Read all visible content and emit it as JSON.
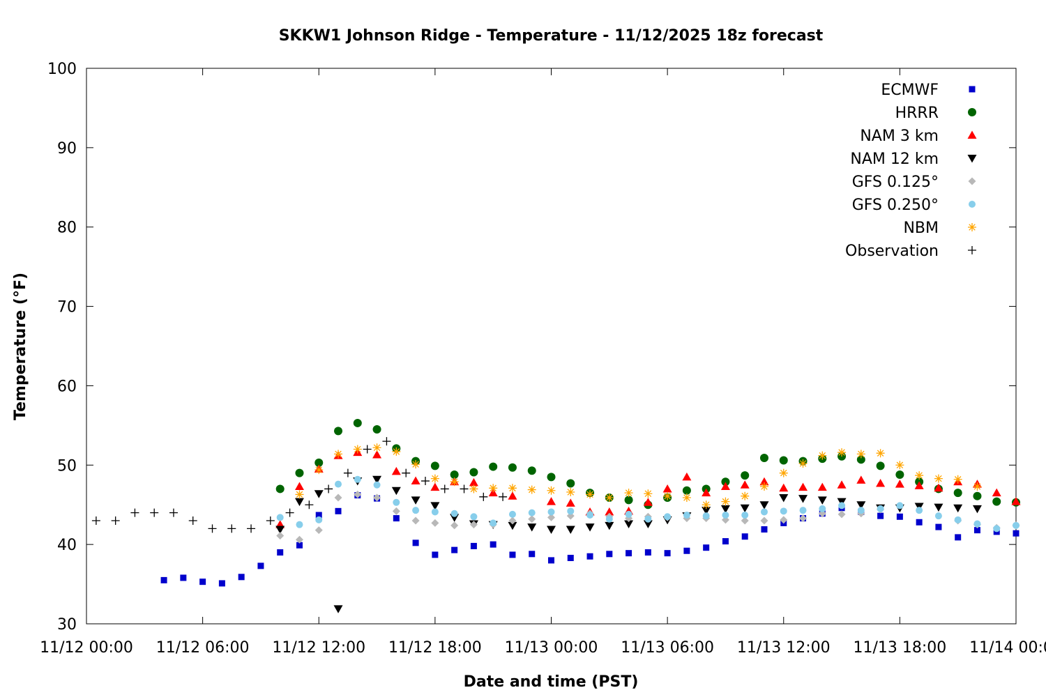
{
  "chart_data": {
    "type": "scatter",
    "title": "SKKW1 Johnson Ridge - Temperature - 11/12/2025 18z forecast",
    "xlabel": "Date and time (PST)",
    "ylabel": "Temperature (°F)",
    "xlim": [
      0,
      48
    ],
    "ylim": [
      30,
      100
    ],
    "xticks": [
      {
        "value": 0,
        "label": "11/12 00:00"
      },
      {
        "value": 6,
        "label": "11/12 06:00"
      },
      {
        "value": 12,
        "label": "11/12 12:00"
      },
      {
        "value": 18,
        "label": "11/12 18:00"
      },
      {
        "value": 24,
        "label": "11/13 00:00"
      },
      {
        "value": 30,
        "label": "11/13 06:00"
      },
      {
        "value": 36,
        "label": "11/13 12:00"
      },
      {
        "value": 42,
        "label": "11/13 18:00"
      },
      {
        "value": 48,
        "label": "11/14 00:00"
      }
    ],
    "yticks": [
      30,
      40,
      50,
      60,
      70,
      80,
      90,
      100
    ],
    "x_units": "hours since 11/12 00:00 PST",
    "legend_position": "top-right",
    "series": [
      {
        "name": "ECMWF",
        "marker": "square",
        "color": "#0000cc",
        "points": [
          [
            4,
            35.5
          ],
          [
            5,
            35.8
          ],
          [
            6,
            35.3
          ],
          [
            7,
            35.1
          ],
          [
            8,
            35.9
          ],
          [
            9,
            37.3
          ],
          [
            10,
            39.0
          ],
          [
            11,
            39.9
          ],
          [
            12,
            43.7
          ],
          [
            13,
            44.2
          ],
          [
            14,
            46.2
          ],
          [
            15,
            45.8
          ],
          [
            16,
            43.3
          ],
          [
            17,
            40.2
          ],
          [
            18,
            38.7
          ],
          [
            19,
            39.3
          ],
          [
            20,
            39.8
          ],
          [
            21,
            40.0
          ],
          [
            22,
            38.7
          ],
          [
            23,
            38.8
          ],
          [
            24,
            38.0
          ],
          [
            25,
            38.3
          ],
          [
            26,
            38.5
          ],
          [
            27,
            38.8
          ],
          [
            28,
            38.9
          ],
          [
            29,
            39.0
          ],
          [
            30,
            38.9
          ],
          [
            31,
            39.2
          ],
          [
            32,
            39.6
          ],
          [
            33,
            40.4
          ],
          [
            34,
            41.0
          ],
          [
            35,
            41.9
          ],
          [
            36,
            42.7
          ],
          [
            37,
            43.3
          ],
          [
            38,
            43.9
          ],
          [
            39,
            44.6
          ],
          [
            40,
            44.1
          ],
          [
            41,
            43.6
          ],
          [
            42,
            43.5
          ],
          [
            43,
            42.8
          ],
          [
            44,
            42.2
          ],
          [
            45,
            40.9
          ],
          [
            46,
            41.8
          ],
          [
            47,
            41.6
          ],
          [
            48,
            41.4
          ]
        ]
      },
      {
        "name": "HRRR",
        "marker": "circle",
        "color": "#006400",
        "points": [
          [
            10,
            47.0
          ],
          [
            11,
            49.0
          ],
          [
            12,
            50.3
          ],
          [
            13,
            54.3
          ],
          [
            14,
            55.3
          ],
          [
            15,
            54.5
          ],
          [
            16,
            52.1
          ],
          [
            17,
            50.5
          ],
          [
            18,
            49.9
          ],
          [
            19,
            48.8
          ],
          [
            20,
            49.1
          ],
          [
            21,
            49.8
          ],
          [
            22,
            49.7
          ],
          [
            23,
            49.3
          ],
          [
            24,
            48.5
          ],
          [
            25,
            47.7
          ],
          [
            26,
            46.5
          ],
          [
            27,
            45.9
          ],
          [
            28,
            45.6
          ],
          [
            29,
            45.0
          ],
          [
            30,
            45.9
          ],
          [
            31,
            46.8
          ],
          [
            32,
            47.0
          ],
          [
            33,
            47.9
          ],
          [
            34,
            48.7
          ],
          [
            35,
            50.9
          ],
          [
            36,
            50.6
          ],
          [
            37,
            50.5
          ],
          [
            38,
            50.8
          ],
          [
            39,
            51.1
          ],
          [
            40,
            50.7
          ],
          [
            41,
            49.9
          ],
          [
            42,
            48.8
          ],
          [
            43,
            47.9
          ],
          [
            44,
            47.0
          ],
          [
            45,
            46.5
          ],
          [
            46,
            46.1
          ],
          [
            47,
            45.4
          ],
          [
            48,
            45.3
          ]
        ]
      },
      {
        "name": "NAM 3 km",
        "marker": "triangle-up",
        "color": "#ff0000",
        "points": [
          [
            10,
            42.5
          ],
          [
            11,
            47.3
          ],
          [
            12,
            49.5
          ],
          [
            13,
            51.2
          ],
          [
            14,
            51.6
          ],
          [
            15,
            51.3
          ],
          [
            16,
            49.2
          ],
          [
            17,
            48.0
          ],
          [
            18,
            47.2
          ],
          [
            19,
            47.9
          ],
          [
            20,
            47.8
          ],
          [
            21,
            46.5
          ],
          [
            22,
            46.1
          ],
          [
            23,
            null
          ],
          [
            24,
            45.4
          ],
          [
            25,
            45.2
          ],
          [
            26,
            44.1
          ],
          [
            27,
            44.1
          ],
          [
            28,
            44.2
          ],
          [
            29,
            45.3
          ],
          [
            30,
            47.0
          ],
          [
            31,
            48.5
          ],
          [
            32,
            46.5
          ],
          [
            33,
            47.3
          ],
          [
            34,
            47.5
          ],
          [
            35,
            47.9
          ],
          [
            36,
            47.1
          ],
          [
            37,
            47.2
          ],
          [
            38,
            47.2
          ],
          [
            39,
            47.5
          ],
          [
            40,
            48.1
          ],
          [
            41,
            47.7
          ],
          [
            42,
            47.6
          ],
          [
            43,
            47.4
          ],
          [
            44,
            47.1
          ],
          [
            45,
            47.9
          ],
          [
            46,
            47.6
          ],
          [
            47,
            46.5
          ],
          [
            48,
            45.4
          ]
        ]
      },
      {
        "name": "NAM 12 km",
        "marker": "triangle-down",
        "color": "#000000",
        "points": [
          [
            10,
            41.9
          ],
          [
            11,
            45.4
          ],
          [
            12,
            46.4
          ],
          [
            13,
            31.9
          ],
          [
            14,
            48.0
          ],
          [
            15,
            48.2
          ],
          [
            16,
            46.8
          ],
          [
            17,
            45.6
          ],
          [
            18,
            44.9
          ],
          [
            19,
            43.4
          ],
          [
            20,
            42.6
          ],
          [
            21,
            42.5
          ],
          [
            22,
            42.4
          ],
          [
            23,
            42.2
          ],
          [
            24,
            41.9
          ],
          [
            25,
            41.9
          ],
          [
            26,
            42.2
          ],
          [
            27,
            42.4
          ],
          [
            28,
            42.6
          ],
          [
            29,
            42.6
          ],
          [
            30,
            43.1
          ],
          [
            31,
            43.6
          ],
          [
            32,
            44.3
          ],
          [
            33,
            44.5
          ],
          [
            34,
            44.6
          ],
          [
            35,
            45.0
          ],
          [
            36,
            45.9
          ],
          [
            37,
            45.8
          ],
          [
            38,
            45.6
          ],
          [
            39,
            45.4
          ],
          [
            40,
            45.0
          ],
          [
            41,
            44.6
          ],
          [
            42,
            44.6
          ],
          [
            43,
            44.8
          ],
          [
            44,
            44.7
          ],
          [
            45,
            44.6
          ],
          [
            46,
            44.5
          ],
          [
            47,
            null
          ],
          [
            48,
            null
          ]
        ]
      },
      {
        "name": "GFS 0.125°",
        "marker": "diamond",
        "color": "#b8b8b8",
        "points": [
          [
            10,
            41.1
          ],
          [
            11,
            40.6
          ],
          [
            12,
            41.8
          ],
          [
            13,
            45.9
          ],
          [
            14,
            46.3
          ],
          [
            15,
            45.9
          ],
          [
            16,
            44.2
          ],
          [
            17,
            43.0
          ],
          [
            18,
            42.7
          ],
          [
            19,
            42.4
          ],
          [
            20,
            42.5
          ],
          [
            21,
            42.5
          ],
          [
            22,
            43.0
          ],
          [
            23,
            43.2
          ],
          [
            24,
            43.4
          ],
          [
            25,
            43.6
          ],
          [
            26,
            43.9
          ],
          [
            27,
            43.5
          ],
          [
            28,
            43.3
          ],
          [
            29,
            43.5
          ],
          [
            30,
            43.4
          ],
          [
            31,
            43.3
          ],
          [
            32,
            43.3
          ],
          [
            33,
            43.1
          ],
          [
            34,
            43.0
          ],
          [
            35,
            43.0
          ],
          [
            36,
            43.1
          ],
          [
            37,
            43.3
          ],
          [
            38,
            43.9
          ],
          [
            39,
            43.8
          ],
          [
            40,
            43.9
          ],
          [
            41,
            44.4
          ],
          [
            42,
            null
          ],
          [
            43,
            null
          ],
          [
            44,
            null
          ],
          [
            45,
            43.0
          ],
          [
            46,
            42.5
          ],
          [
            47,
            42.1
          ],
          [
            48,
            42.4
          ]
        ]
      },
      {
        "name": "GFS 0.250°",
        "marker": "circle-small",
        "color": "#87ceeb",
        "points": [
          [
            10,
            43.4
          ],
          [
            11,
            42.5
          ],
          [
            12,
            43.1
          ],
          [
            13,
            47.6
          ],
          [
            14,
            48.2
          ],
          [
            15,
            47.5
          ],
          [
            16,
            45.3
          ],
          [
            17,
            44.3
          ],
          [
            18,
            44.1
          ],
          [
            19,
            43.9
          ],
          [
            20,
            43.5
          ],
          [
            21,
            42.7
          ],
          [
            22,
            43.8
          ],
          [
            23,
            44.0
          ],
          [
            24,
            44.1
          ],
          [
            25,
            44.2
          ],
          [
            26,
            43.7
          ],
          [
            27,
            43.2
          ],
          [
            28,
            43.8
          ],
          [
            29,
            43.2
          ],
          [
            30,
            43.5
          ],
          [
            31,
            43.7
          ],
          [
            32,
            43.6
          ],
          [
            33,
            43.7
          ],
          [
            34,
            43.7
          ],
          [
            35,
            44.1
          ],
          [
            36,
            44.2
          ],
          [
            37,
            44.3
          ],
          [
            38,
            44.5
          ],
          [
            39,
            44.9
          ],
          [
            40,
            44.3
          ],
          [
            41,
            44.5
          ],
          [
            42,
            44.9
          ],
          [
            43,
            44.3
          ],
          [
            44,
            43.6
          ],
          [
            45,
            43.1
          ],
          [
            46,
            42.6
          ],
          [
            47,
            42.0
          ],
          [
            48,
            42.4
          ]
        ]
      },
      {
        "name": "NBM",
        "marker": "asterisk",
        "color": "#ffa500",
        "points": [
          [
            10,
            null
          ],
          [
            11,
            46.3
          ],
          [
            12,
            49.4
          ],
          [
            13,
            51.4
          ],
          [
            14,
            52.0
          ],
          [
            15,
            52.2
          ],
          [
            16,
            51.7
          ],
          [
            17,
            50.1
          ],
          [
            18,
            48.3
          ],
          [
            19,
            47.9
          ],
          [
            20,
            47.0
          ],
          [
            21,
            47.1
          ],
          [
            22,
            47.1
          ],
          [
            23,
            46.9
          ],
          [
            24,
            46.8
          ],
          [
            25,
            46.6
          ],
          [
            26,
            46.3
          ],
          [
            27,
            45.9
          ],
          [
            28,
            46.5
          ],
          [
            29,
            46.4
          ],
          [
            30,
            46.1
          ],
          [
            31,
            45.9
          ],
          [
            32,
            45.0
          ],
          [
            33,
            45.4
          ],
          [
            34,
            46.1
          ],
          [
            35,
            47.3
          ],
          [
            36,
            49.0
          ],
          [
            37,
            50.2
          ],
          [
            38,
            51.2
          ],
          [
            39,
            51.6
          ],
          [
            40,
            51.4
          ],
          [
            41,
            51.5
          ],
          [
            42,
            50.0
          ],
          [
            43,
            48.7
          ],
          [
            44,
            48.3
          ],
          [
            45,
            48.2
          ],
          [
            46,
            47.3
          ],
          [
            47,
            null
          ],
          [
            48,
            null
          ]
        ]
      },
      {
        "name": "Observation",
        "marker": "plus",
        "color": "#000000",
        "points": [
          [
            0.5,
            43
          ],
          [
            1.5,
            43
          ],
          [
            2.5,
            44
          ],
          [
            3.5,
            44
          ],
          [
            4.5,
            44
          ],
          [
            5.5,
            43
          ],
          [
            6.5,
            42
          ],
          [
            7.5,
            42
          ],
          [
            8.5,
            42
          ],
          [
            9.5,
            43
          ],
          [
            10.5,
            44
          ],
          [
            11.5,
            45
          ],
          [
            12.5,
            47
          ],
          [
            13.5,
            49
          ],
          [
            14.5,
            52
          ],
          [
            15.5,
            53
          ],
          [
            16.5,
            49
          ],
          [
            17.5,
            48
          ],
          [
            18.5,
            47
          ],
          [
            19.5,
            47
          ],
          [
            20.5,
            46
          ],
          [
            21.5,
            46
          ]
        ]
      }
    ]
  }
}
